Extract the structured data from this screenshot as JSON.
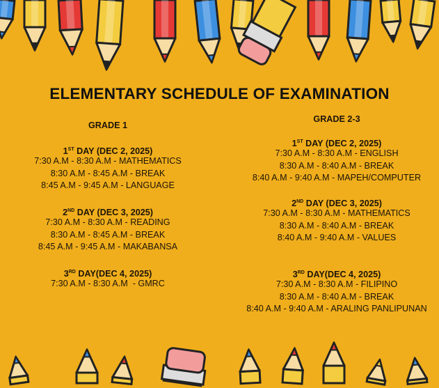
{
  "title": "ELEMENTARY SCHEDULE OF EXAMINATION",
  "colors": {
    "background": "#F0AE1C",
    "text": "#1c1408"
  },
  "decorations": {
    "top": "colored-pencils-pointing-down",
    "bottom": "colored-pencils-pointing-up"
  },
  "columns": [
    {
      "grade": "GRADE 1",
      "days": [
        {
          "num": "1",
          "sup": "ST",
          "rest": " DAY (DEC 2, 2025)",
          "lines": [
            "7:30 A.M - 8:30 A.M - MATHEMATICS",
            "8:30 A.M - 8:45 A.M - BREAK",
            "8:45 A.M - 9:45 A.M - LANGUAGE"
          ]
        },
        {
          "num": "2",
          "sup": "ND",
          "rest": " DAY (DEC 3, 2025)",
          "lines": [
            "7:30 A.M - 8:30 A.M - READING",
            "8:30 A.M - 8:45 A.M - BREAK",
            "8:45 A.M - 9:45 A.M - MAKABANSA"
          ]
        },
        {
          "num": "3",
          "sup": "RD",
          "rest": " DAY(DEC 4, 2025)",
          "lines": [
            "7:30 A.M - 8:30 A.M  - GMRC"
          ]
        }
      ]
    },
    {
      "grade": "GRADE 2-3",
      "days": [
        {
          "num": "1",
          "sup": "ST",
          "rest": " DAY (DEC 2, 2025)",
          "lines": [
            "7:30 A.M - 8:30 A.M - ENGLISH",
            "8:30 A.M - 8:40 A.M - BREAK",
            "8:40 A.M - 9:40 A.M - MAPEH/COMPUTER"
          ]
        },
        {
          "num": "2",
          "sup": "ND",
          "rest": " DAY (DEC 3, 2025)",
          "lines": [
            "7:30 A.M - 8:30 A.M - MATHEMATICS",
            "8:30 A.M - 8:40 A.M - BREAK",
            "8:40 A.M - 9:40 A.M - VALUES"
          ]
        },
        {
          "num": "3",
          "sup": "RD",
          "rest": " DAY(DEC 4, 2025)",
          "lines": [
            "7:30 A.M - 8:30 A.M - FILIPINO",
            "8:30 A.M - 8:40 A.M - BREAK",
            "8:40 A.M - 9:40 A.M - ARALING PANLIPUNAN"
          ]
        }
      ]
    }
  ]
}
